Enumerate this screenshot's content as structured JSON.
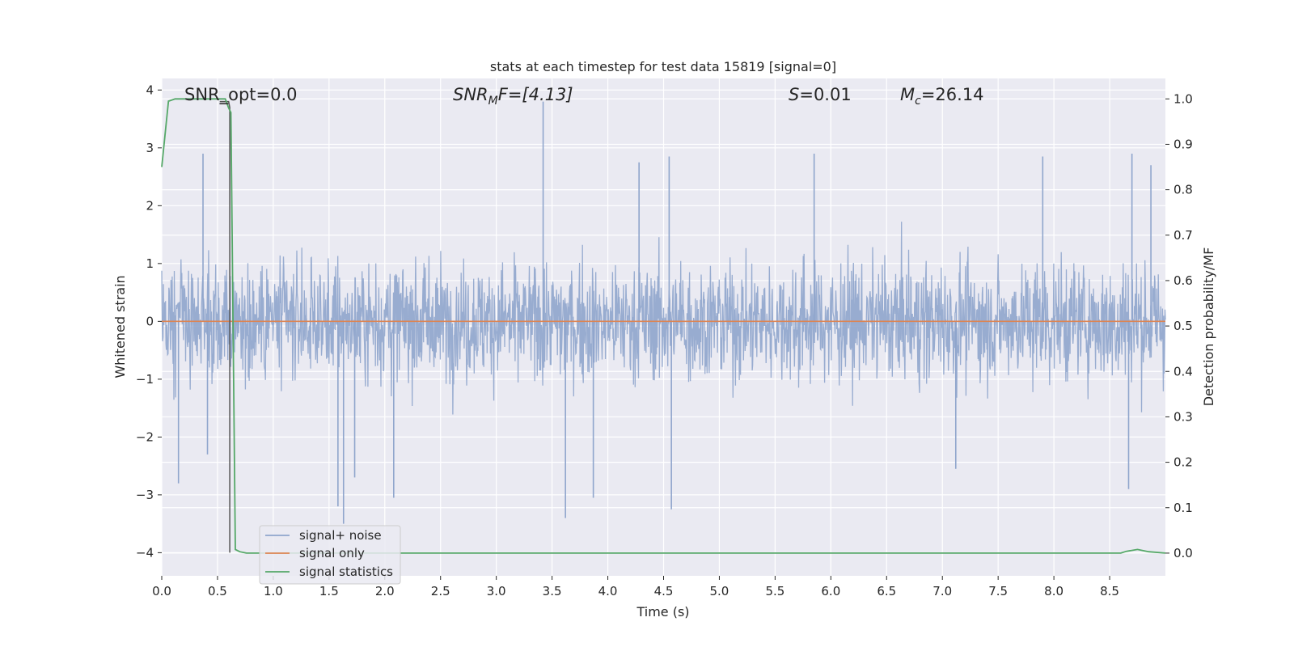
{
  "chart_data": {
    "type": "line",
    "title": "stats at each timestep for test data 15819 [signal=0]",
    "xlabel": "Time (s)",
    "ylabel": "Whitened strain",
    "y2label": "Detection probability/MF",
    "xlim": [
      0,
      9.0
    ],
    "ylim": [
      -4.4,
      4.2
    ],
    "y2lim": [
      -0.05,
      1.045
    ],
    "xticks": [
      0.0,
      0.5,
      1.0,
      1.5,
      2.0,
      2.5,
      3.0,
      3.5,
      4.0,
      4.5,
      5.0,
      5.5,
      6.0,
      6.5,
      7.0,
      7.5,
      8.0,
      8.5
    ],
    "xtick_labels": [
      "0.0",
      "0.5",
      "1.0",
      "1.5",
      "2.0",
      "2.5",
      "3.0",
      "3.5",
      "4.0",
      "4.5",
      "5.0",
      "5.5",
      "6.0",
      "6.5",
      "7.0",
      "7.5",
      "8.0",
      "8.5"
    ],
    "yticks": [
      -4,
      -3,
      -2,
      -1,
      0,
      1,
      2,
      3,
      4
    ],
    "ytick_labels": [
      "−4",
      "−3",
      "−2",
      "−1",
      "0",
      "1",
      "2",
      "3",
      "4"
    ],
    "y2ticks": [
      0.0,
      0.1,
      0.2,
      0.3,
      0.4,
      0.5,
      0.6,
      0.7,
      0.8,
      0.9,
      1.0
    ],
    "y2tick_labels": [
      "0.0",
      "0.1",
      "0.2",
      "0.3",
      "0.4",
      "0.5",
      "0.6",
      "0.7",
      "0.8",
      "0.9",
      "1.0"
    ],
    "grid": true,
    "legend": {
      "placement": "lower-left",
      "entries": [
        "signal+ noise",
        "signal only",
        "signal statistics"
      ]
    },
    "annotations": {
      "snr_opt": "SNR_opt=0.0",
      "snr_mf_base": "SNR",
      "snr_mf_sub": "M",
      "snr_mf_rest": "F=[4.13]",
      "s_var": "S",
      "s_rest": "=0.01",
      "mc_base": "M",
      "mc_sub": "c",
      "mc_rest": "=26.14"
    },
    "series": [
      {
        "name": "signal+ noise",
        "color": "#8fa5cc",
        "kind": "noise",
        "typical_range": [
          -1.6,
          1.9
        ],
        "peaks": [
          {
            "x": 0.37,
            "y": 2.9
          },
          {
            "x": 0.15,
            "y": -2.8
          },
          {
            "x": 0.41,
            "y": -2.3
          },
          {
            "x": 1.58,
            "y": -3.2
          },
          {
            "x": 1.63,
            "y": -3.5
          },
          {
            "x": 1.73,
            "y": -2.7
          },
          {
            "x": 2.08,
            "y": -3.05
          },
          {
            "x": 3.42,
            "y": 3.8
          },
          {
            "x": 3.62,
            "y": -3.4
          },
          {
            "x": 3.87,
            "y": -3.05
          },
          {
            "x": 4.57,
            "y": -3.25
          },
          {
            "x": 4.55,
            "y": 2.85
          },
          {
            "x": 4.28,
            "y": 2.75
          },
          {
            "x": 5.85,
            "y": 2.9
          },
          {
            "x": 7.12,
            "y": -2.55
          },
          {
            "x": 7.9,
            "y": 2.85
          },
          {
            "x": 8.67,
            "y": -2.9
          },
          {
            "x": 8.7,
            "y": 2.9
          },
          {
            "x": 8.87,
            "y": 2.7
          }
        ]
      },
      {
        "name": "signal only",
        "color": "#dd8452",
        "x": [
          0,
          9.0
        ],
        "y": [
          0,
          0
        ]
      },
      {
        "name": "signal statistics",
        "color": "#55a868",
        "axis": "right",
        "x": [
          0,
          0.06,
          0.12,
          0.2,
          0.3,
          0.4,
          0.5,
          0.57,
          0.6,
          0.62,
          0.66,
          0.7,
          0.76,
          0.9,
          8.6,
          8.65,
          8.75,
          8.85,
          9.0
        ],
        "y": [
          0.85,
          0.995,
          1.0,
          1.0,
          1.0,
          1.0,
          1.0,
          1.0,
          0.98,
          0.97,
          0.008,
          0.003,
          0.0,
          0.0,
          0.0,
          0.004,
          0.008,
          0.003,
          0.0
        ]
      },
      {
        "name": "",
        "color": "#555555",
        "kind": "marker",
        "x": [
          0.52,
          0.6,
          0.61,
          0.61
        ],
        "y": [
          3.8,
          3.8,
          3.7,
          -4.0
        ]
      }
    ]
  }
}
